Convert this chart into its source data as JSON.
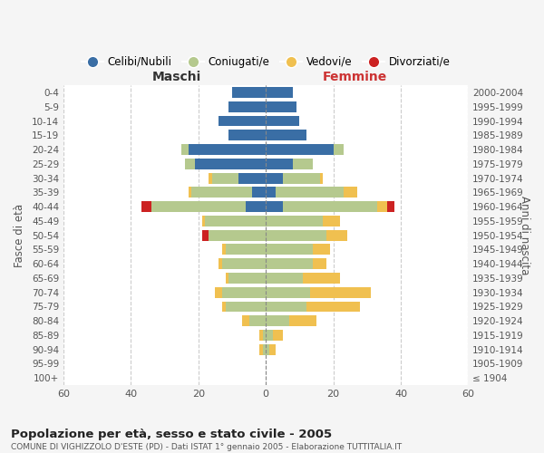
{
  "age_groups": [
    "100+",
    "95-99",
    "90-94",
    "85-89",
    "80-84",
    "75-79",
    "70-74",
    "65-69",
    "60-64",
    "55-59",
    "50-54",
    "45-49",
    "40-44",
    "35-39",
    "30-34",
    "25-29",
    "20-24",
    "15-19",
    "10-14",
    "5-9",
    "0-4"
  ],
  "birth_years": [
    "≤ 1904",
    "1905-1909",
    "1910-1914",
    "1915-1919",
    "1920-1924",
    "1925-1929",
    "1930-1934",
    "1935-1939",
    "1940-1944",
    "1945-1949",
    "1950-1954",
    "1955-1959",
    "1960-1964",
    "1965-1969",
    "1970-1974",
    "1975-1979",
    "1980-1984",
    "1985-1989",
    "1990-1994",
    "1995-1999",
    "2000-2004"
  ],
  "maschi": {
    "celibi": [
      0,
      0,
      0,
      0,
      0,
      0,
      0,
      0,
      0,
      0,
      0,
      0,
      6,
      4,
      8,
      21,
      23,
      11,
      14,
      11,
      10
    ],
    "coniugati": [
      0,
      0,
      1,
      1,
      5,
      12,
      13,
      11,
      13,
      12,
      17,
      18,
      28,
      18,
      8,
      3,
      2,
      0,
      0,
      0,
      0
    ],
    "vedovi": [
      0,
      0,
      1,
      1,
      2,
      1,
      2,
      1,
      1,
      1,
      0,
      1,
      0,
      1,
      1,
      0,
      0,
      0,
      0,
      0,
      0
    ],
    "divorziati": [
      0,
      0,
      0,
      0,
      0,
      0,
      0,
      0,
      0,
      0,
      2,
      0,
      3,
      0,
      0,
      0,
      0,
      0,
      0,
      0,
      0
    ]
  },
  "femmine": {
    "nubili": [
      0,
      0,
      0,
      0,
      0,
      0,
      0,
      0,
      0,
      0,
      0,
      0,
      5,
      3,
      5,
      8,
      20,
      12,
      10,
      9,
      8
    ],
    "coniugate": [
      0,
      0,
      1,
      2,
      7,
      12,
      13,
      11,
      14,
      14,
      18,
      17,
      28,
      20,
      11,
      6,
      3,
      0,
      0,
      0,
      0
    ],
    "vedove": [
      0,
      0,
      2,
      3,
      8,
      16,
      18,
      11,
      4,
      5,
      6,
      5,
      3,
      4,
      1,
      0,
      0,
      0,
      0,
      0,
      0
    ],
    "divorziate": [
      0,
      0,
      0,
      0,
      0,
      0,
      0,
      0,
      0,
      0,
      0,
      0,
      2,
      0,
      0,
      0,
      0,
      0,
      0,
      0,
      0
    ]
  },
  "colors": {
    "celibi": "#3a6ea5",
    "coniugati": "#b5c98e",
    "vedovi": "#f0c050",
    "divorziati": "#cc2222"
  },
  "xlim": 60,
  "title": "Popolazione per età, sesso e stato civile - 2005",
  "subtitle": "COMUNE DI VIGHIZZOLO D'ESTE (PD) - Dati ISTAT 1° gennaio 2005 - Elaborazione TUTTITALIA.IT",
  "ylabel_left": "Fasce di età",
  "ylabel_right": "Anni di nascita",
  "label_maschi": "Maschi",
  "label_femmine": "Femmine",
  "legend_labels": [
    "Celibi/Nubili",
    "Coniugati/e",
    "Vedovi/e",
    "Divorziati/e"
  ],
  "bg_color": "#f5f5f5",
  "plot_bg_color": "#ffffff"
}
